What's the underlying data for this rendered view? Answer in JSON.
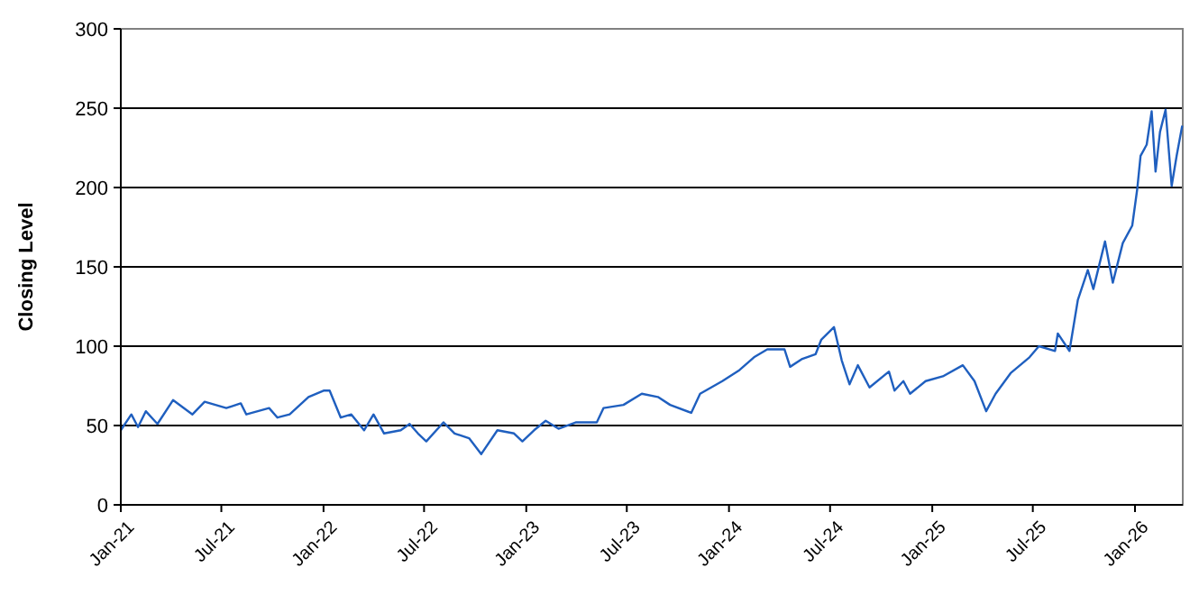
{
  "chart_data": {
    "type": "line",
    "ylabel": "Closing Level",
    "xlim": [
      "2021-01-01",
      "2026-03-28"
    ],
    "ylim": [
      0,
      300
    ],
    "yticks": [
      0,
      50,
      100,
      150,
      200,
      250,
      300
    ],
    "xticks": [
      {
        "value": "2021-01-01",
        "label": "Jan-21"
      },
      {
        "value": "2021-07-01",
        "label": "Jul-21"
      },
      {
        "value": "2022-01-01",
        "label": "Jan-22"
      },
      {
        "value": "2022-07-01",
        "label": "Jul-22"
      },
      {
        "value": "2023-01-01",
        "label": "Jan-23"
      },
      {
        "value": "2023-07-01",
        "label": "Jul-23"
      },
      {
        "value": "2024-01-01",
        "label": "Jan-24"
      },
      {
        "value": "2024-07-01",
        "label": "Jul-24"
      },
      {
        "value": "2025-01-01",
        "label": "Jan-25"
      },
      {
        "value": "2025-07-01",
        "label": "Jul-25"
      },
      {
        "value": "2026-01-01",
        "label": "Jan-26"
      }
    ],
    "grid": "y",
    "marker": "none",
    "line_style": "solid",
    "x": [
      "2021-01-01",
      "2021-01-20",
      "2021-02-01",
      "2021-02-15",
      "2021-03-08",
      "2021-04-05",
      "2021-05-10",
      "2021-06-01",
      "2021-07-10",
      "2021-08-05",
      "2021-08-15",
      "2021-09-25",
      "2021-10-10",
      "2021-11-01",
      "2021-12-05",
      "2022-01-01",
      "2022-01-12",
      "2022-02-01",
      "2022-02-20",
      "2022-03-15",
      "2022-04-01",
      "2022-04-20",
      "2022-05-20",
      "2022-06-05",
      "2022-06-20",
      "2022-07-05",
      "2022-08-05",
      "2022-08-25",
      "2022-09-20",
      "2022-10-12",
      "2022-11-10",
      "2022-12-10",
      "2022-12-25",
      "2023-01-15",
      "2023-02-05",
      "2023-02-28",
      "2023-04-01",
      "2023-05-08",
      "2023-05-20",
      "2023-06-25",
      "2023-07-28",
      "2023-08-26",
      "2023-09-17",
      "2023-10-25",
      "2023-11-10",
      "2023-12-20",
      "2024-01-20",
      "2024-02-15",
      "2024-03-10",
      "2024-04-10",
      "2024-04-20",
      "2024-05-12",
      "2024-06-05",
      "2024-06-15",
      "2024-07-08",
      "2024-07-22",
      "2024-08-05",
      "2024-08-20",
      "2024-09-10",
      "2024-10-15",
      "2024-10-25",
      "2024-11-10",
      "2024-11-22",
      "2024-12-20",
      "2025-01-20",
      "2025-02-25",
      "2025-03-18",
      "2025-04-08",
      "2025-04-25",
      "2025-05-22",
      "2025-06-25",
      "2025-07-12",
      "2025-08-10",
      "2025-08-15",
      "2025-09-05",
      "2025-09-20",
      "2025-10-08",
      "2025-10-18",
      "2025-11-08",
      "2025-11-22",
      "2025-12-10",
      "2025-12-27",
      "2026-01-05",
      "2026-01-11",
      "2026-01-22",
      "2026-01-31",
      "2026-02-07",
      "2026-02-15",
      "2026-02-25",
      "2026-03-08",
      "2026-03-17",
      "2026-03-27"
    ],
    "series": [
      {
        "color": "#1f5fbf",
        "values": [
          47,
          57,
          49,
          59,
          51,
          66,
          57,
          65,
          61,
          64,
          57,
          61,
          55,
          57,
          68,
          72,
          72,
          55,
          57,
          47,
          57,
          45,
          47,
          51,
          45,
          40,
          52,
          45,
          42,
          32,
          47,
          45,
          40,
          47,
          53,
          48,
          52,
          52,
          61,
          63,
          70,
          68,
          63,
          58,
          70,
          78,
          85,
          93,
          98,
          98,
          87,
          92,
          95,
          104,
          112,
          91,
          76,
          88,
          74,
          84,
          72,
          78,
          70,
          78,
          81,
          88,
          78,
          59,
          70,
          83,
          93,
          100,
          97,
          108,
          97,
          129,
          148,
          136,
          166,
          140,
          165,
          176,
          199,
          220,
          227,
          248,
          210,
          235,
          249,
          201,
          220,
          239
        ]
      }
    ]
  }
}
